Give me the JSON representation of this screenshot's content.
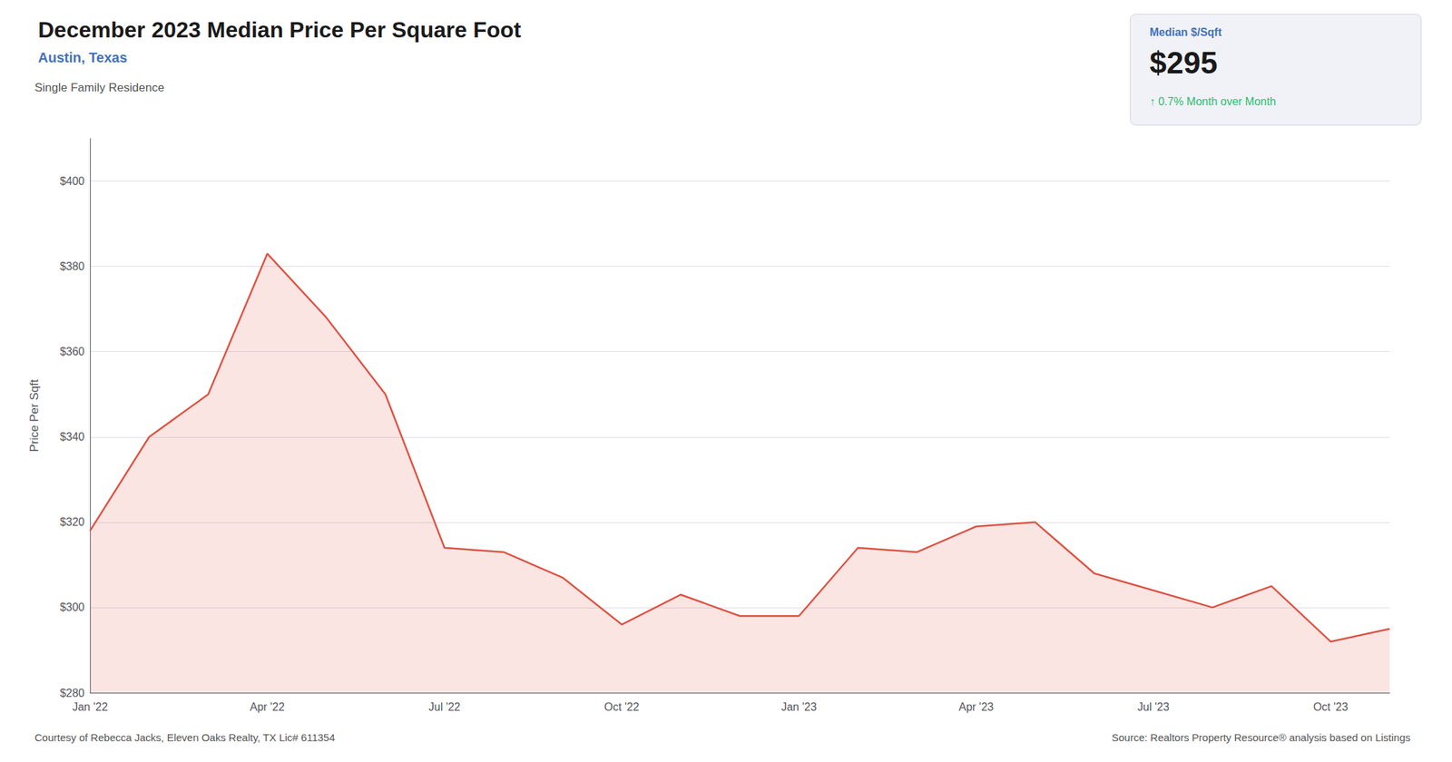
{
  "chart_data": {
    "type": "line",
    "title": "December 2023 Median Price Per Square Foot",
    "subtitle": "Austin, Texas",
    "ylabel": "Price Per Sqft",
    "annotations": [
      "Single Family Residence",
      "Median $/Sqft",
      "$295",
      "↑ 0.7% Month over Month",
      "Courtesy of Rebecca Jacks, Eleven Oaks Realty, TX Lic# 611354",
      "Source: Realtors Property Resource® analysis based on Listings"
    ],
    "categories": [
      "Jan '22",
      null,
      null,
      "Apr '22",
      null,
      null,
      "Jul '22",
      null,
      null,
      "Oct '22",
      null,
      null,
      "Jan '23",
      null,
      null,
      "Apr '23",
      null,
      null,
      "Jul '23",
      null,
      null,
      "Oct '23",
      null
    ],
    "values": [
      318,
      340,
      350,
      383,
      368,
      350,
      314,
      313,
      307,
      296,
      303,
      298,
      298,
      314,
      313,
      319,
      320,
      308,
      304,
      300,
      305,
      292,
      295
    ],
    "color": "#e05040",
    "ylim": [
      280,
      410
    ],
    "yticks": [
      {
        "value": 280,
        "label": "$280"
      },
      {
        "value": 300,
        "label": "$300"
      },
      {
        "value": 320,
        "label": "$320"
      },
      {
        "value": 340,
        "label": "$340"
      },
      {
        "value": 360,
        "label": "$360"
      },
      {
        "value": 380,
        "label": "$380"
      },
      {
        "value": 400,
        "label": "$400"
      }
    ],
    "grid": true
  }
}
